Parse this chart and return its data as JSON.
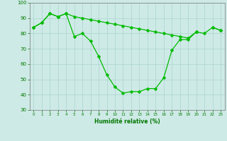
{
  "x": [
    0,
    1,
    2,
    3,
    4,
    5,
    6,
    7,
    8,
    9,
    10,
    11,
    12,
    13,
    14,
    15,
    16,
    17,
    18,
    19,
    20,
    21,
    22,
    23
  ],
  "line_upper": [
    84,
    87,
    93,
    91,
    93,
    91,
    90,
    89,
    88,
    87,
    86,
    85,
    84,
    83,
    82,
    81,
    80,
    79,
    78,
    77,
    81,
    80,
    84,
    82
  ],
  "line_lower": [
    84,
    87,
    93,
    91,
    93,
    78,
    80,
    75,
    65,
    53,
    45,
    41,
    42,
    42,
    44,
    44,
    51,
    69,
    76,
    76,
    81,
    null,
    84,
    82
  ],
  "bg_color": "#ceeae6",
  "grid_color": "#aad4cf",
  "line_color": "#00bb00",
  "xlabel": "Humidité relative (%)",
  "xlabel_color": "#007700",
  "tick_color": "#007700",
  "ylim": [
    30,
    100
  ],
  "xlim": [
    -0.5,
    23.5
  ],
  "yticks": [
    30,
    40,
    50,
    60,
    70,
    80,
    90,
    100
  ],
  "xticks": [
    0,
    1,
    2,
    3,
    4,
    5,
    6,
    7,
    8,
    9,
    10,
    11,
    12,
    13,
    14,
    15,
    16,
    17,
    18,
    19,
    20,
    21,
    22,
    23
  ]
}
